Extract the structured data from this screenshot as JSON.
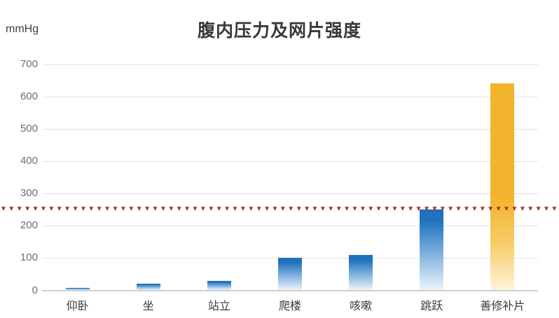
{
  "header": {
    "title": "腹内压力及网片强度",
    "unit_label": "mmHg"
  },
  "chart_data": {
    "type": "bar",
    "title": "腹内压力及网片强度",
    "ylabel": "mmHg",
    "xlabel": "",
    "categories": [
      "仰卧",
      "坐",
      "站立",
      "爬楼",
      "咳嗽",
      "跳跃",
      "善修补片"
    ],
    "values": [
      8,
      20,
      30,
      100,
      110,
      250,
      640
    ],
    "bar_palette": [
      "blue",
      "blue",
      "blue",
      "blue",
      "blue",
      "blue",
      "gold"
    ],
    "ylim": [
      0,
      700
    ],
    "yticks": [
      0,
      100,
      200,
      300,
      400,
      500,
      600,
      700
    ],
    "threshold": {
      "value": 250,
      "style": "red-triangle-dotted-line"
    },
    "grid": true,
    "legend_position": "none"
  },
  "threshold_marker": {
    "glyph": "▼",
    "repeat": 90
  },
  "colors": {
    "bar_blue_top": "#1f72bd",
    "bar_blue_mid": "#8fbce2",
    "bar_blue_bottom": "#edf5fb",
    "bar_gold_top": "#f2b42c",
    "bar_gold_mid": "#f6cd6a",
    "bar_gold_bottom": "#fdf4da",
    "threshold_red": "#c1281b",
    "gridline": "#e3e3e3",
    "axis_line": "#cfcfcf",
    "tick_text": "#6e6e6e",
    "category_text": "#3a3a3a",
    "title_text": "#383838"
  }
}
